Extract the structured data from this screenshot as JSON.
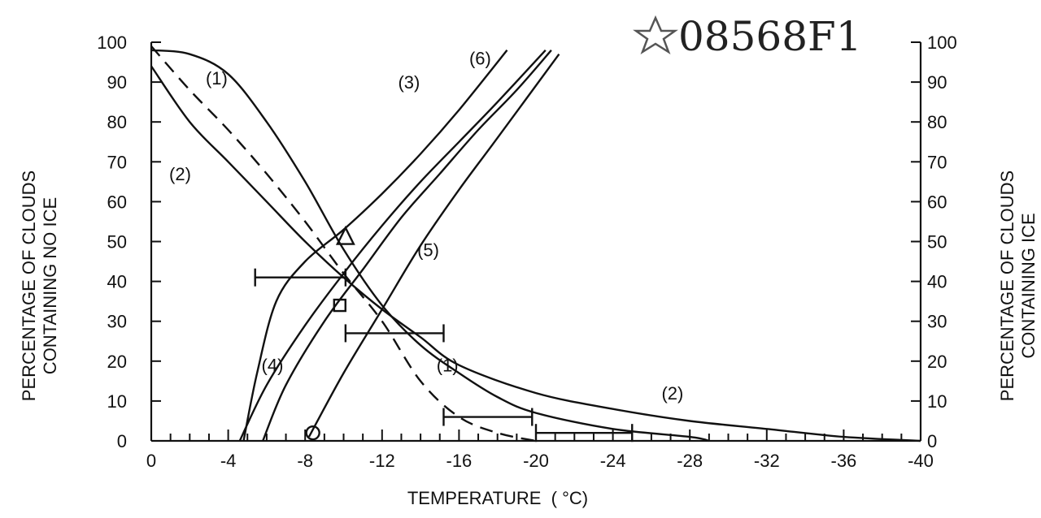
{
  "figure_id": "08568F1",
  "chart_data": {
    "type": "line",
    "xlabel": "TEMPERATURE  ( °C)",
    "ylabel_left": [
      "PERCENTAGE OF CLOUDS",
      "CONTAINING NO ICE"
    ],
    "ylabel_right": [
      "PERCENTAGE OF CLOUDS",
      "CONTAINING ICE"
    ],
    "xlim": [
      0,
      -40
    ],
    "ylim": [
      0,
      100
    ],
    "x_ticks": [
      "0",
      "-4",
      "-8",
      "-12",
      "-16",
      "-20",
      "-24",
      "-28",
      "-32",
      "-36",
      "-40"
    ],
    "y_ticks_left": [
      "0",
      "10",
      "20",
      "30",
      "40",
      "50",
      "60",
      "70",
      "80",
      "90",
      "100"
    ],
    "y_ticks_right": [
      "0",
      "10",
      "20",
      "30",
      "40",
      "50",
      "60",
      "70",
      "80",
      "90",
      "100"
    ],
    "grid": false,
    "series": [
      {
        "name": "(1)",
        "style": "solid",
        "x": [
          0,
          -2,
          -4,
          -6,
          -8,
          -10,
          -12,
          -14,
          -16,
          -18,
          -20,
          -24,
          -28,
          -29
        ],
        "y": [
          98,
          97,
          92,
          80,
          65,
          48,
          34,
          24,
          17,
          11,
          7,
          3,
          1,
          0
        ]
      },
      {
        "name": "(2)",
        "style": "solid",
        "x": [
          0,
          -2,
          -4,
          -6,
          -8,
          -10,
          -12,
          -14,
          -16,
          -20,
          -24,
          -28,
          -32,
          -36,
          -40
        ],
        "y": [
          94,
          80,
          70,
          60,
          50,
          41,
          33,
          26,
          19,
          12,
          8,
          5,
          3,
          1,
          0
        ]
      },
      {
        "name": "",
        "style": "dashed",
        "x": [
          0,
          -2,
          -4,
          -6,
          -8,
          -10,
          -12,
          -14,
          -16,
          -18,
          -20
        ],
        "y": [
          99,
          88,
          78,
          67,
          55,
          42,
          30,
          15,
          6,
          2,
          0
        ]
      },
      {
        "name": "(3)",
        "style": "solid",
        "x": [
          -4.8,
          -5.5,
          -6.5,
          -8,
          -10,
          -12,
          -14,
          -16,
          -18.5
        ],
        "y": [
          0,
          17,
          35,
          45,
          53,
          62,
          72,
          83,
          98
        ]
      },
      {
        "name": "(4)",
        "style": "solid",
        "x": [
          -4.6,
          -6,
          -8,
          -10,
          -12,
          -14,
          -16,
          -18,
          -20.5
        ],
        "y": [
          0,
          14,
          29,
          42,
          54,
          65,
          75,
          85,
          98
        ]
      },
      {
        "name": "(6)",
        "style": "solid",
        "x": [
          -5.8,
          -7,
          -9,
          -11,
          -13,
          -15,
          -17,
          -19,
          -20.8
        ],
        "y": [
          0,
          14,
          30,
          43,
          56,
          67,
          78,
          88,
          98
        ]
      },
      {
        "name": "(5)",
        "style": "solid",
        "x": [
          -8.2,
          -10,
          -12,
          -14,
          -16,
          -18,
          -21.2
        ],
        "y": [
          1,
          17,
          33,
          49,
          63,
          76,
          97
        ]
      }
    ],
    "label_positions": [
      {
        "text": "(1)",
        "x": -3.4,
        "y": 91
      },
      {
        "text": "(2)",
        "x": -1.5,
        "y": 67
      },
      {
        "text": "(3)",
        "x": -13.4,
        "y": 90
      },
      {
        "text": "(6)",
        "x": -17.1,
        "y": 96
      },
      {
        "text": "(4)",
        "x": -6.3,
        "y": 19
      },
      {
        "text": "(5)",
        "x": -14.4,
        "y": 48
      },
      {
        "text": "(1)",
        "x": -15.4,
        "y": 19
      },
      {
        "text": "(2)",
        "x": -27.1,
        "y": 12
      }
    ],
    "markers": [
      {
        "shape": "triangle",
        "x": -10.1,
        "y": 51
      },
      {
        "shape": "square",
        "x": -9.8,
        "y": 34
      },
      {
        "shape": "circle",
        "x": -8.4,
        "y": 2
      }
    ],
    "error_bars": [
      {
        "x_from": -5.4,
        "x_to": -10.1,
        "y": 41
      },
      {
        "x_from": -10.1,
        "x_to": -15.2,
        "y": 27
      },
      {
        "x_from": -15.2,
        "x_to": -19.8,
        "y": 6
      },
      {
        "x_from": -20.0,
        "x_to": -25.0,
        "y": 2
      }
    ]
  }
}
